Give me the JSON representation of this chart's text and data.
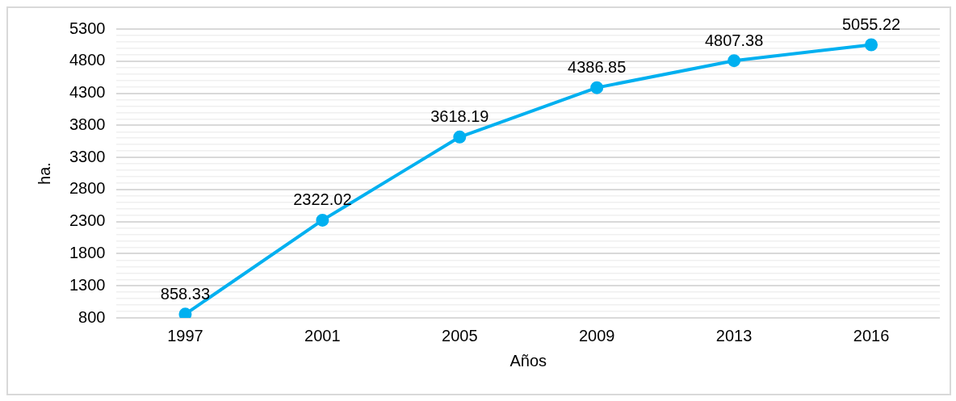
{
  "chart_data": {
    "type": "line",
    "xlabel": "Años",
    "ylabel": "ha.",
    "categories": [
      "1997",
      "2001",
      "2005",
      "2009",
      "2013",
      "2016"
    ],
    "series": [
      {
        "color": "#00b0f0",
        "values": [
          858.33,
          2322.02,
          3618.19,
          4386.85,
          4807.38,
          5055.22
        ]
      }
    ],
    "ylim": [
      800,
      5300
    ],
    "yticks": [
      800,
      {
        "value": 900,
        "label": null
      },
      {
        "value": 1000,
        "label": null
      },
      {
        "value": 1100,
        "label": null
      },
      {
        "value": 1200,
        "label": null
      },
      1300,
      {
        "value": 1400,
        "label": null
      },
      {
        "value": 1500,
        "label": null
      },
      {
        "value": 1600,
        "label": null
      },
      {
        "value": 1700,
        "label": null
      },
      1800,
      {
        "value": 1900,
        "label": null
      },
      {
        "value": 2000,
        "label": null
      },
      {
        "value": 2100,
        "label": null
      },
      {
        "value": 2200,
        "label": null
      },
      2300,
      {
        "value": 2400,
        "label": null
      },
      {
        "value": 2500,
        "label": null
      },
      {
        "value": 2600,
        "label": null
      },
      {
        "value": 2700,
        "label": null
      },
      2800,
      {
        "value": 2900,
        "label": null
      },
      {
        "value": 3000,
        "label": null
      },
      {
        "value": 3100,
        "label": null
      },
      {
        "value": 3200,
        "label": null
      },
      3300,
      {
        "value": 3400,
        "label": null
      },
      {
        "value": 3500,
        "label": null
      },
      {
        "value": 3600,
        "label": null
      },
      {
        "value": 3700,
        "label": null
      },
      3800,
      {
        "value": 3900,
        "label": null
      },
      {
        "value": 4000,
        "label": null
      },
      {
        "value": 4100,
        "label": null
      },
      {
        "value": 4200,
        "label": null
      },
      4300,
      {
        "value": 4400,
        "label": null
      },
      {
        "value": 4500,
        "label": null
      },
      {
        "value": 4600,
        "label": null
      },
      {
        "value": 4700,
        "label": null
      },
      4800,
      {
        "value": 4900,
        "label": null
      },
      {
        "value": 5000,
        "label": null
      },
      {
        "value": 5100,
        "label": null
      },
      {
        "value": 5200,
        "label": null
      },
      5300
    ],
    "grid": "y",
    "marker": "circle",
    "line_style": "solid",
    "data_labels": true,
    "legend": false
  }
}
